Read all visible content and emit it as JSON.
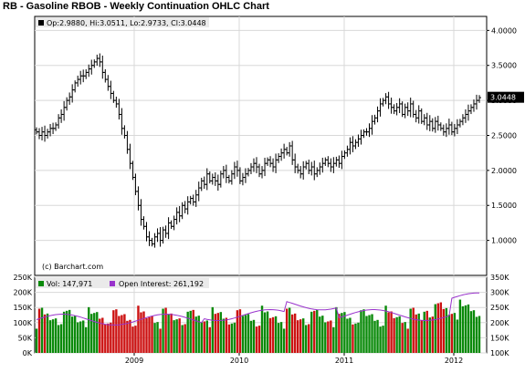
{
  "chart_data": [
    {
      "type": "ohlc",
      "title": "RB - Gasoline RBOB - Weekly Continuation OHLC Chart",
      "legend": {
        "open_label": "Op:2.9880",
        "high_label": "Hi:3.0511",
        "low_label": "Lo:2.9733",
        "close_label": "Cl:3.0448"
      },
      "last_price_label": "3.0448",
      "source_note": "(c) Barchart.com",
      "ylim": [
        0.5,
        4.2
      ],
      "y_ticks": [
        "4.0000",
        "3.5000",
        "3.0000",
        "2.5000",
        "2.0000",
        "1.5000",
        "1.0000"
      ],
      "x_labels": [
        "2009",
        "2010",
        "2011",
        "2012"
      ],
      "closes": [
        2.55,
        2.5,
        2.55,
        2.5,
        2.55,
        2.6,
        2.6,
        2.65,
        2.75,
        2.8,
        2.9,
        3.0,
        3.05,
        3.15,
        3.25,
        3.3,
        3.35,
        3.35,
        3.4,
        3.45,
        3.5,
        3.55,
        3.6,
        3.55,
        3.4,
        3.3,
        3.2,
        3.1,
        3.0,
        2.95,
        2.8,
        2.6,
        2.5,
        2.3,
        2.1,
        1.9,
        1.7,
        1.5,
        1.3,
        1.2,
        1.05,
        1.0,
        0.95,
        1.05,
        1.1,
        1.0,
        1.15,
        1.1,
        1.25,
        1.2,
        1.3,
        1.4,
        1.35,
        1.5,
        1.45,
        1.55,
        1.6,
        1.55,
        1.65,
        1.75,
        1.85,
        1.8,
        1.95,
        1.85,
        1.9,
        1.85,
        1.8,
        1.95,
        2.0,
        1.9,
        1.85,
        1.95,
        2.05,
        2.0,
        1.85,
        1.9,
        1.95,
        2.0,
        2.05,
        2.1,
        2.05,
        1.95,
        2.0,
        2.1,
        2.15,
        2.1,
        2.05,
        2.15,
        2.2,
        2.25,
        2.3,
        2.25,
        2.35,
        2.15,
        2.05,
        2.0,
        1.95,
        2.05,
        2.1,
        2.0,
        2.05,
        1.95,
        2.0,
        2.05,
        2.1,
        2.15,
        2.1,
        2.05,
        2.1,
        2.15,
        2.1,
        2.2,
        2.25,
        2.3,
        2.4,
        2.35,
        2.4,
        2.45,
        2.5,
        2.55,
        2.55,
        2.6,
        2.7,
        2.75,
        2.85,
        2.95,
        3.0,
        3.05,
        2.95,
        2.9,
        2.85,
        2.9,
        2.95,
        2.8,
        2.9,
        2.85,
        2.95,
        2.8,
        2.75,
        2.85,
        2.7,
        2.75,
        2.65,
        2.7,
        2.6,
        2.7,
        2.65,
        2.6,
        2.55,
        2.6,
        2.65,
        2.55,
        2.6,
        2.65,
        2.7,
        2.75,
        2.8,
        2.85,
        2.9,
        2.95,
        3.0,
        3.04
      ],
      "volume": {
        "label": "Vol: 147,971",
        "ylim": [
          0,
          250000
        ],
        "y_ticks": [
          "250K",
          "200K",
          "150K",
          "100K",
          "50K",
          "0K"
        ]
      },
      "open_interest": {
        "label": "Open Interest: 261,192",
        "ylim": [
          100000,
          350000
        ],
        "y_ticks": [
          "350K",
          "300K",
          "250K",
          "200K",
          "150K",
          "100K"
        ]
      },
      "colors": {
        "up": "#0a8a0a",
        "down": "#cc1111",
        "oi_line": "#9933cc",
        "frame": "#000000",
        "grid": "#d8d8d8",
        "legend_bg": "#eaeaea"
      }
    }
  ]
}
